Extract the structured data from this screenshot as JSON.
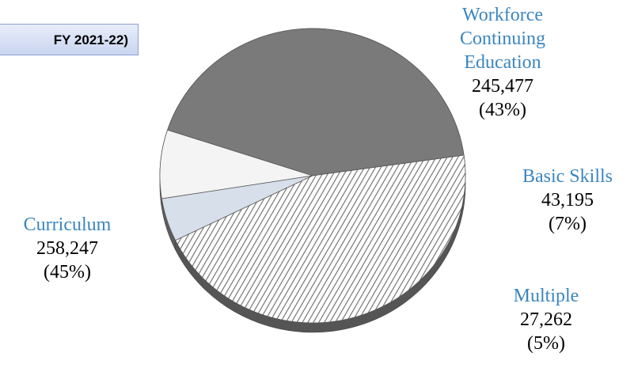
{
  "chart_data": {
    "type": "pie",
    "title": "FY 2021-22)",
    "slices": [
      {
        "name": "Workforce Continuing Education",
        "value": 245477,
        "label_value": "245,477",
        "percent": "(43%)",
        "fill": "#7a7a7a"
      },
      {
        "name": "Basic Skills",
        "value": 43195,
        "label_value": "43,195",
        "percent": "(7%)",
        "fill": "#f4f4f4"
      },
      {
        "name": "Multiple",
        "value": 27262,
        "label_value": "27,262",
        "percent": "(5%)",
        "fill": "#d7dfea"
      },
      {
        "name": "Curriculum",
        "value": 258247,
        "label_value": "258,247",
        "percent": "(45%)",
        "fill": "hatched"
      }
    ]
  },
  "colors": {
    "label_name": "#3b86bf",
    "title_box": "#c9d5f0"
  }
}
